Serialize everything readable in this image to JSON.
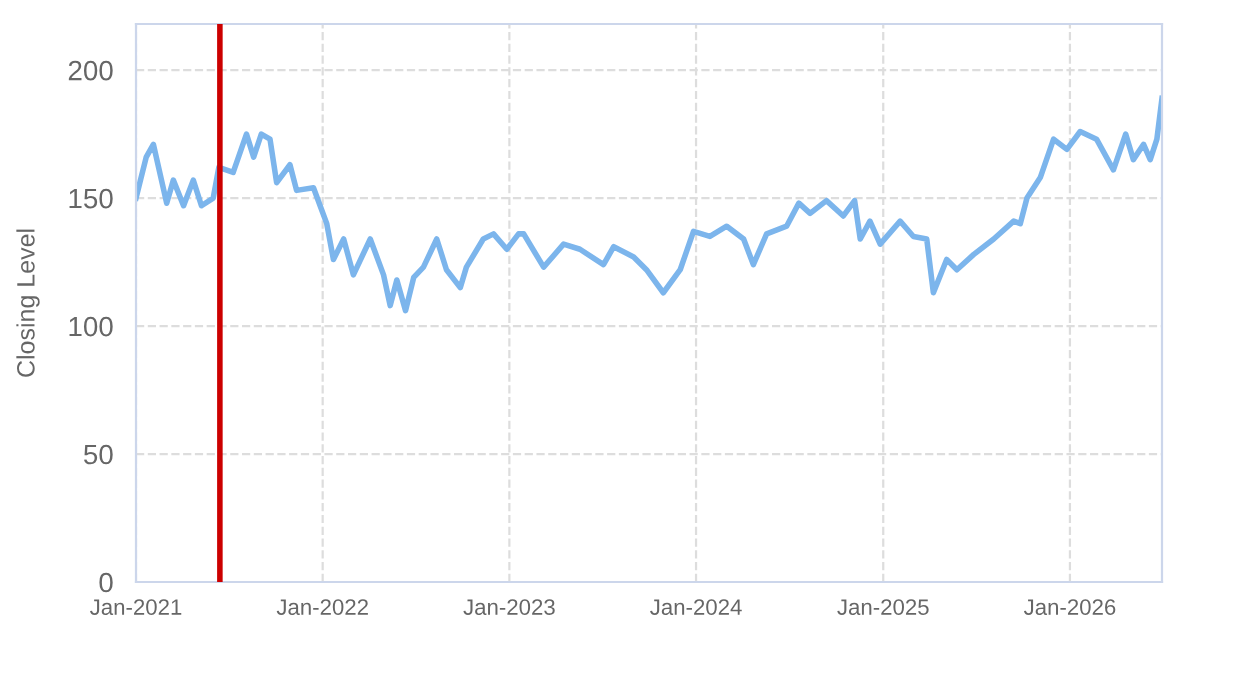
{
  "chart_data": {
    "type": "line",
    "ylabel": "Closing Level",
    "x": [
      "2021-01-01",
      "2021-01-21",
      "2021-02-04",
      "2021-03-02",
      "2021-03-15",
      "2021-04-04",
      "2021-04-23",
      "2021-05-09",
      "2021-06-01",
      "2021-06-12",
      "2021-07-10",
      "2021-08-05",
      "2021-08-19",
      "2021-09-03",
      "2021-09-20",
      "2021-10-03",
      "2021-10-29",
      "2021-11-11",
      "2021-12-14",
      "2021-12-27",
      "2022-01-09",
      "2022-01-22",
      "2022-02-11",
      "2022-03-02",
      "2022-04-04",
      "2022-04-30",
      "2022-05-13",
      "2022-05-26",
      "2022-06-12",
      "2022-06-28",
      "2022-07-17",
      "2022-08-12",
      "2022-08-31",
      "2022-09-27",
      "2022-10-09",
      "2022-11-11",
      "2022-12-01",
      "2022-12-27",
      "2023-01-19",
      "2023-01-29",
      "2023-03-09",
      "2023-04-17",
      "2023-05-19",
      "2023-07-04",
      "2023-07-24",
      "2023-09-01",
      "2023-09-26",
      "2023-10-29",
      "2023-12-01",
      "2023-12-27",
      "2024-01-28",
      "2024-03-01",
      "2024-04-03",
      "2024-04-22",
      "2024-05-18",
      "2024-06-26",
      "2024-07-20",
      "2024-08-11",
      "2024-09-12",
      "2024-10-15",
      "2024-11-06",
      "2024-11-17",
      "2024-12-06",
      "2024-12-26",
      "2025-02-03",
      "2025-03-01",
      "2025-03-27",
      "2025-04-09",
      "2025-05-05",
      "2025-05-25",
      "2025-06-27",
      "2025-08-05",
      "2025-09-13",
      "2025-09-26",
      "2025-10-09",
      "2025-11-04",
      "2025-11-30",
      "2025-12-26",
      "2026-01-21",
      "2026-02-22",
      "2026-03-27",
      "2026-04-20",
      "2026-05-05",
      "2026-05-25",
      "2026-06-07",
      "2026-06-20",
      "2026-06-30"
    ],
    "series": [
      {
        "color": "#7cb5ec",
        "values": [
          150,
          166,
          171,
          148,
          157,
          147,
          157,
          147,
          150,
          162,
          160,
          175,
          166,
          175,
          173,
          156,
          163,
          153,
          154,
          147,
          140,
          126,
          134,
          120,
          134,
          120,
          108,
          118,
          106,
          119,
          123,
          134,
          122,
          115,
          123,
          134,
          136,
          130,
          136,
          136,
          123,
          132,
          130,
          124,
          131,
          127,
          122,
          113,
          122,
          137,
          135,
          139,
          134,
          124,
          136,
          139,
          148,
          144,
          149,
          143,
          149,
          134,
          141,
          132,
          141,
          135,
          134,
          113,
          126,
          122,
          128,
          134,
          141,
          140,
          150,
          158,
          173,
          169,
          176,
          173,
          161,
          175,
          165,
          171,
          165,
          173,
          189
        ]
      }
    ],
    "xlim": [
      "2021-01-01",
      "2026-06-30"
    ],
    "xticks": [
      {
        "value": "2021-01-01",
        "label": "Jan-2021"
      },
      {
        "value": "2022-01-01",
        "label": "Jan-2022"
      },
      {
        "value": "2023-01-01",
        "label": "Jan-2023"
      },
      {
        "value": "2024-01-01",
        "label": "Jan-2024"
      },
      {
        "value": "2025-01-01",
        "label": "Jan-2025"
      },
      {
        "value": "2026-01-01",
        "label": "Jan-2026"
      }
    ],
    "ylim": [
      0,
      218
    ],
    "yticks": [
      0,
      50,
      100,
      150,
      200
    ],
    "grid": true,
    "line_style": "solid",
    "legend": false,
    "ref_lines": [
      {
        "axis": "x",
        "value": "2021-06-14",
        "label": null,
        "color": "#cc0000",
        "line_style": "solid"
      }
    ]
  }
}
